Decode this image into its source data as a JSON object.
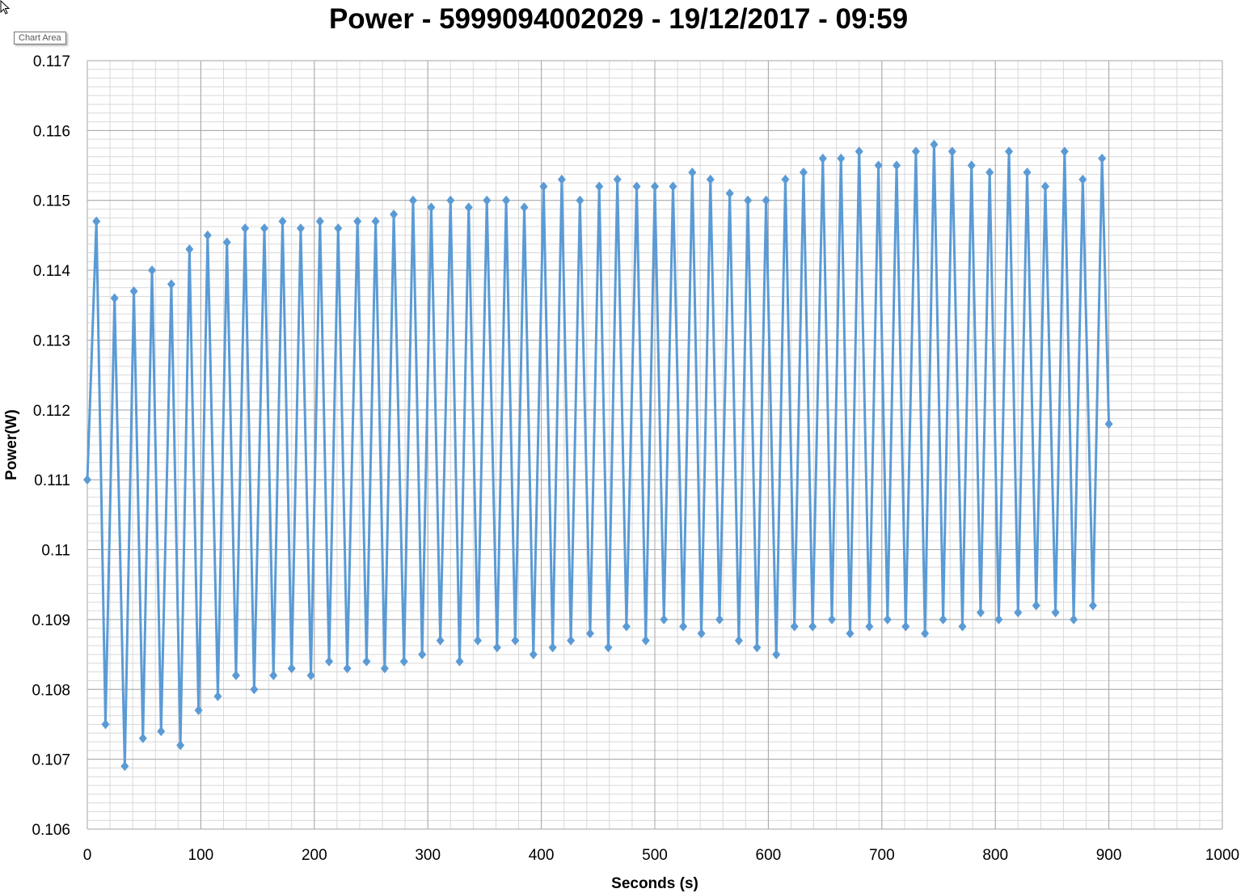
{
  "tooltip": "Chart Area",
  "chart_data": {
    "type": "line",
    "title": "Power - 5999094002029 - 19/12/2017 - 09:59",
    "xlabel": "Seconds (s)",
    "ylabel": "Power(W)",
    "xlim": [
      0,
      1000
    ],
    "ylim": [
      0.106,
      0.117
    ],
    "xticks": [
      "0",
      "100",
      "200",
      "300",
      "400",
      "500",
      "600",
      "700",
      "800",
      "900",
      "1000"
    ],
    "yticks": [
      "0.106",
      "0.107",
      "0.108",
      "0.109",
      "0.11",
      "0.111",
      "0.112",
      "0.113",
      "0.114",
      "0.115",
      "0.116",
      "0.117"
    ],
    "grid": {
      "major": true,
      "minor": true
    },
    "legend": "none",
    "marker": "diamond",
    "color": "#5B9BD5",
    "series": [
      {
        "x": [
          0,
          8,
          16,
          24,
          33,
          41,
          49,
          57,
          65,
          74,
          82,
          90,
          98,
          106,
          115,
          123,
          131,
          139,
          147,
          156,
          164,
          172,
          180,
          188,
          197,
          205,
          213,
          221,
          229,
          238,
          246,
          254,
          262,
          270,
          279,
          287,
          295,
          303,
          311,
          320,
          328,
          336,
          344,
          352,
          361,
          369,
          377,
          385,
          393,
          402,
          410,
          418,
          426,
          434,
          443,
          451,
          459,
          467,
          475,
          484,
          492,
          500,
          508,
          516,
          525,
          533,
          541,
          549,
          557,
          566,
          574,
          582,
          590,
          598,
          607,
          615,
          623,
          631,
          639,
          648,
          656,
          664,
          672,
          680,
          689,
          697,
          705,
          713,
          721,
          730,
          738,
          746,
          754,
          762,
          771,
          779,
          787,
          795,
          803,
          812,
          820,
          828,
          836,
          844,
          853,
          861,
          869,
          877,
          886,
          894,
          900
        ],
        "y": [
          0.111,
          0.1147,
          0.1075,
          0.1136,
          0.1069,
          0.1137,
          0.1073,
          0.114,
          0.1074,
          0.1138,
          0.1072,
          0.1143,
          0.1077,
          0.1145,
          0.1079,
          0.1144,
          0.1082,
          0.1146,
          0.108,
          0.1146,
          0.1082,
          0.1147,
          0.1083,
          0.1146,
          0.1082,
          0.1147,
          0.1084,
          0.1146,
          0.1083,
          0.1147,
          0.1084,
          0.1147,
          0.1083,
          0.1148,
          0.1084,
          0.115,
          0.1085,
          0.1149,
          0.1087,
          0.115,
          0.1084,
          0.1149,
          0.1087,
          0.115,
          0.1086,
          0.115,
          0.1087,
          0.1149,
          0.1085,
          0.1152,
          0.1086,
          0.1153,
          0.1087,
          0.115,
          0.1088,
          0.1152,
          0.1086,
          0.1153,
          0.1089,
          0.1152,
          0.1087,
          0.1152,
          0.109,
          0.1152,
          0.1089,
          0.1154,
          0.1088,
          0.1153,
          0.109,
          0.1151,
          0.1087,
          0.115,
          0.1086,
          0.115,
          0.1085,
          0.1153,
          0.1089,
          0.1154,
          0.1089,
          0.1156,
          0.109,
          0.1156,
          0.1088,
          0.1157,
          0.1089,
          0.1155,
          0.109,
          0.1155,
          0.1089,
          0.1157,
          0.1088,
          0.1158,
          0.109,
          0.1157,
          0.1089,
          0.1155,
          0.1091,
          0.1154,
          0.109,
          0.1157,
          0.1091,
          0.1154,
          0.1092,
          0.1152,
          0.1091,
          0.1157,
          0.109,
          0.1153,
          0.1092,
          0.1156,
          0.1118
        ]
      }
    ]
  }
}
